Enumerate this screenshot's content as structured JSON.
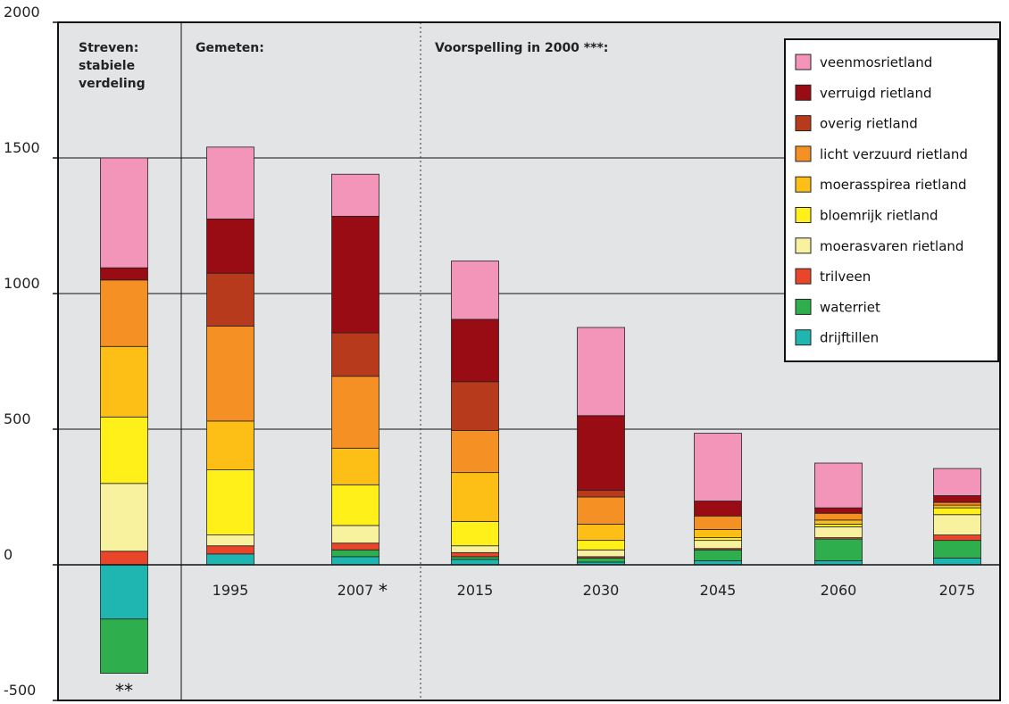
{
  "chart_data": {
    "type": "bar",
    "stacked": true,
    "ylim": [
      -500,
      2000
    ],
    "yticks": [
      "2000",
      "1500",
      "1000",
      "500",
      "0",
      "-500"
    ],
    "grid": true,
    "legend_position": "top-right",
    "panel_labels": {
      "streven": [
        "Streven:",
        "stabiele",
        "verdeling"
      ],
      "gemeten": "Gemeten:",
      "voorspelling": "Voorspelling in 2000 ***:"
    },
    "categories": [
      "",
      "1995",
      "2007",
      "2015",
      "2030",
      "2045",
      "2060",
      "2075"
    ],
    "category_annotations": [
      "**",
      "",
      "*",
      "",
      "",
      "",
      "",
      ""
    ],
    "series": [
      {
        "name": "drijftillen",
        "color": "#1fb5b0",
        "values": [
          -200,
          40,
          30,
          20,
          10,
          15,
          15,
          25
        ]
      },
      {
        "name": "waterriet",
        "color": "#2fae4d",
        "values": [
          -200,
          0,
          25,
          10,
          15,
          40,
          80,
          65
        ]
      },
      {
        "name": "trilveen",
        "color": "#e8452b",
        "values": [
          50,
          30,
          25,
          15,
          5,
          5,
          5,
          20
        ]
      },
      {
        "name": "moerasvaren rietland",
        "color": "#f8f29e",
        "values": [
          250,
          40,
          65,
          25,
          25,
          30,
          40,
          75
        ]
      },
      {
        "name": "bloemrijk rietland",
        "color": "#fff01a",
        "values": [
          245,
          240,
          150,
          90,
          35,
          10,
          10,
          25
        ]
      },
      {
        "name": "moerasspirea rietland",
        "color": "#fdbf16",
        "values": [
          260,
          180,
          135,
          180,
          60,
          30,
          15,
          10
        ]
      },
      {
        "name": "licht verzuurd rietland",
        "color": "#f59024",
        "values": [
          245,
          350,
          265,
          155,
          100,
          50,
          25,
          10
        ]
      },
      {
        "name": "overig rietland",
        "color": "#b73a1c",
        "values": [
          0,
          195,
          160,
          180,
          25,
          0,
          0,
          0
        ]
      },
      {
        "name": "verruigd rietland",
        "color": "#990c14",
        "values": [
          45,
          200,
          430,
          230,
          275,
          55,
          20,
          25
        ]
      },
      {
        "name": "veenmosrietland",
        "color": "#f394b9",
        "values": [
          405,
          265,
          155,
          215,
          325,
          250,
          165,
          100
        ]
      }
    ]
  }
}
